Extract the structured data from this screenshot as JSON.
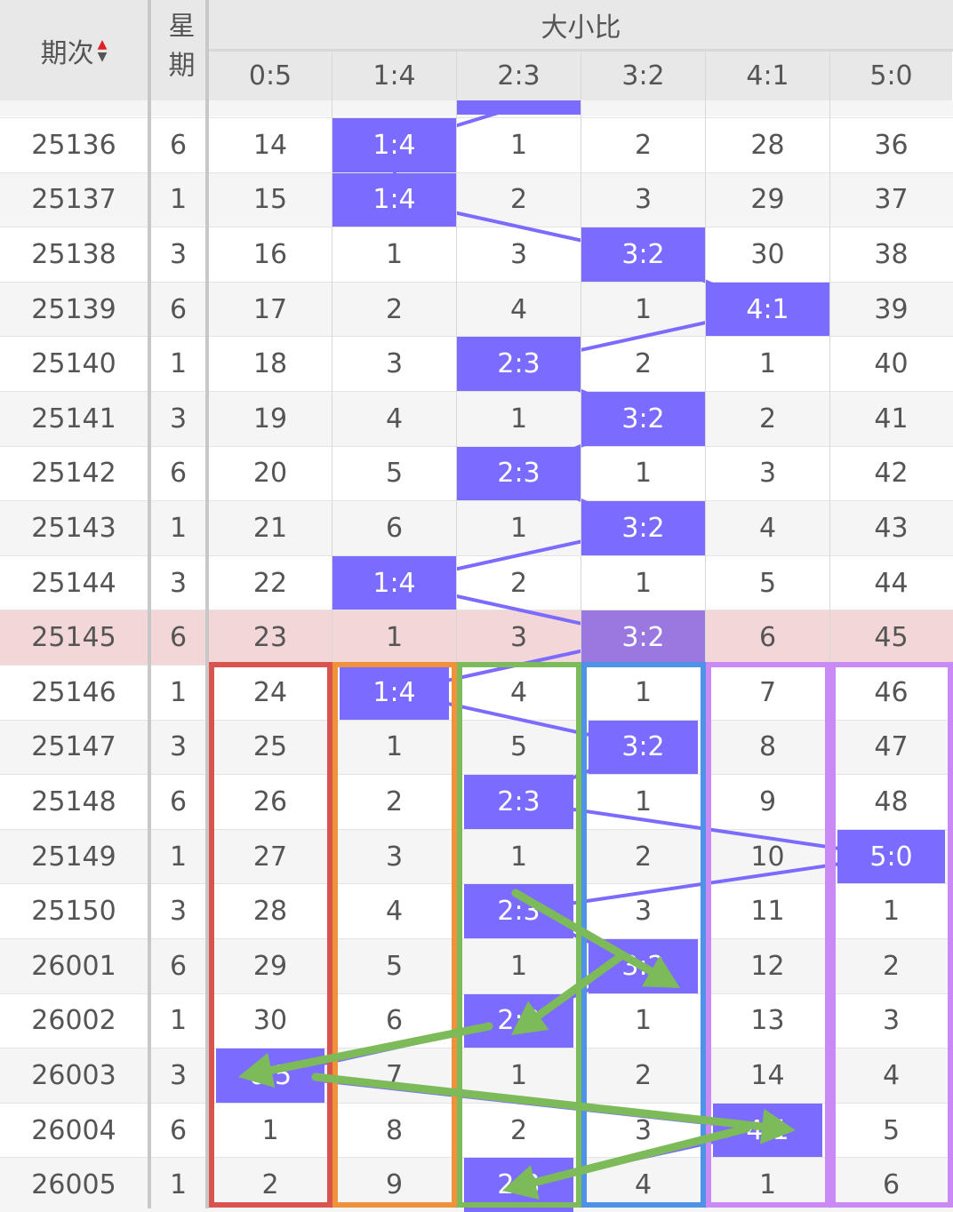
{
  "header": {
    "period_label": "期次",
    "week_label": "星期",
    "group_label": "大小比",
    "columns": [
      "0:5",
      "1:4",
      "2:3",
      "3:2",
      "4:1",
      "5:0"
    ],
    "sort_icon": "sort-up-down-icon"
  },
  "colors": {
    "hit": "#7b6cff",
    "hit_highlight_row": "#9a78e0",
    "highlight_row": "#f3d6d8",
    "arrow": "#7dbb5a",
    "boxes": [
      "#d9534f",
      "#f0923c",
      "#7dbb5a",
      "#4f93e6",
      "#c98af5",
      "#c98af5"
    ]
  },
  "highlight_period": "25145",
  "rows": [
    {
      "period": "25136",
      "week": "6",
      "values": [
        "14",
        "1:4",
        "1",
        "2",
        "28",
        "36"
      ],
      "hit": 1
    },
    {
      "period": "25137",
      "week": "1",
      "values": [
        "15",
        "1:4",
        "2",
        "3",
        "29",
        "37"
      ],
      "hit": 1
    },
    {
      "period": "25138",
      "week": "3",
      "values": [
        "16",
        "1",
        "3",
        "3:2",
        "30",
        "38"
      ],
      "hit": 3
    },
    {
      "period": "25139",
      "week": "6",
      "values": [
        "17",
        "2",
        "4",
        "1",
        "4:1",
        "39"
      ],
      "hit": 4
    },
    {
      "period": "25140",
      "week": "1",
      "values": [
        "18",
        "3",
        "2:3",
        "2",
        "1",
        "40"
      ],
      "hit": 2
    },
    {
      "period": "25141",
      "week": "3",
      "values": [
        "19",
        "4",
        "1",
        "3:2",
        "2",
        "41"
      ],
      "hit": 3
    },
    {
      "period": "25142",
      "week": "6",
      "values": [
        "20",
        "5",
        "2:3",
        "1",
        "3",
        "42"
      ],
      "hit": 2
    },
    {
      "period": "25143",
      "week": "1",
      "values": [
        "21",
        "6",
        "1",
        "3:2",
        "4",
        "43"
      ],
      "hit": 3
    },
    {
      "period": "25144",
      "week": "3",
      "values": [
        "22",
        "1:4",
        "2",
        "1",
        "5",
        "44"
      ],
      "hit": 1
    },
    {
      "period": "25145",
      "week": "6",
      "values": [
        "23",
        "1",
        "3",
        "3:2",
        "6",
        "45"
      ],
      "hit": 3
    },
    {
      "period": "25146",
      "week": "1",
      "values": [
        "24",
        "1:4",
        "4",
        "1",
        "7",
        "46"
      ],
      "hit": 1
    },
    {
      "period": "25147",
      "week": "3",
      "values": [
        "25",
        "1",
        "5",
        "3:2",
        "8",
        "47"
      ],
      "hit": 3
    },
    {
      "period": "25148",
      "week": "6",
      "values": [
        "26",
        "2",
        "2:3",
        "1",
        "9",
        "48"
      ],
      "hit": 2
    },
    {
      "period": "25149",
      "week": "1",
      "values": [
        "27",
        "3",
        "1",
        "2",
        "10",
        "5:0"
      ],
      "hit": 5
    },
    {
      "period": "25150",
      "week": "3",
      "values": [
        "28",
        "4",
        "2:3",
        "3",
        "11",
        "1"
      ],
      "hit": 2
    },
    {
      "period": "26001",
      "week": "6",
      "values": [
        "29",
        "5",
        "1",
        "3:2",
        "12",
        "2"
      ],
      "hit": 3
    },
    {
      "period": "26002",
      "week": "1",
      "values": [
        "30",
        "6",
        "2:3",
        "1",
        "13",
        "3"
      ],
      "hit": 2
    },
    {
      "period": "26003",
      "week": "3",
      "values": [
        "0:5",
        "7",
        "1",
        "2",
        "14",
        "4"
      ],
      "hit": 0
    },
    {
      "period": "26004",
      "week": "6",
      "values": [
        "1",
        "8",
        "2",
        "3",
        "4:1",
        "5"
      ],
      "hit": 4
    },
    {
      "period": "26005",
      "week": "1",
      "values": [
        "2",
        "9",
        "2:3",
        "4",
        "1",
        "6"
      ],
      "hit": 2
    }
  ]
}
